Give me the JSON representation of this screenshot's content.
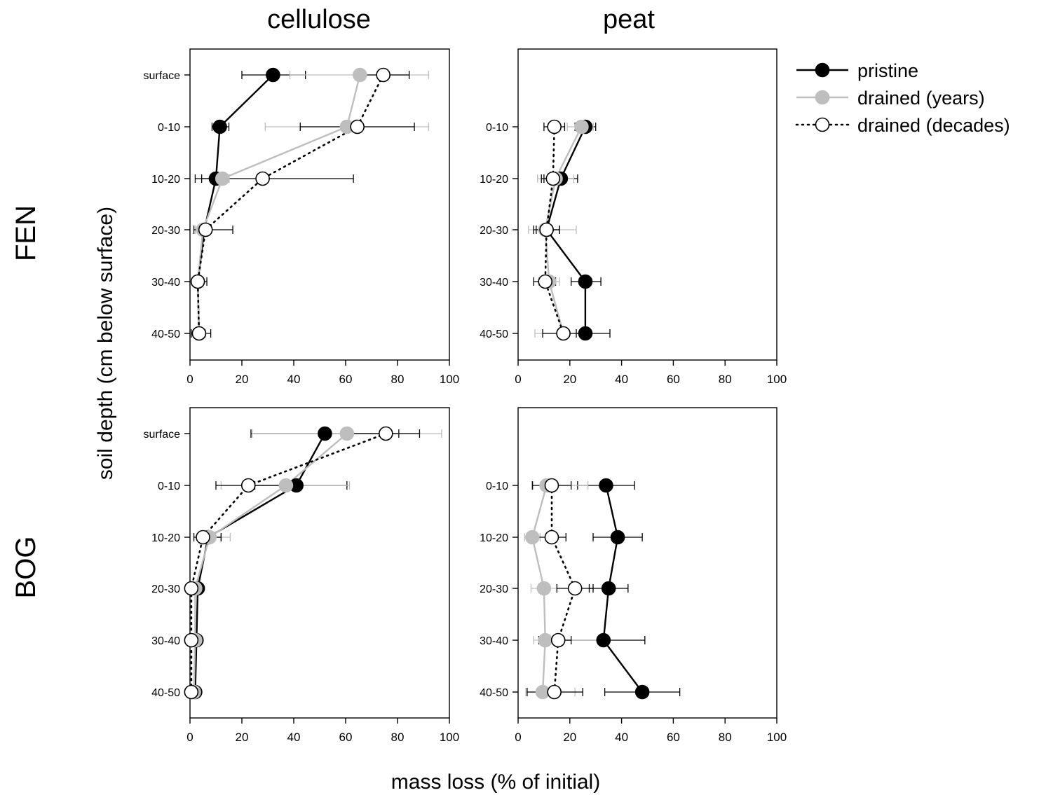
{
  "chart_data": {
    "type": "line",
    "ylabel": "soil depth (cm below surface)",
    "xlabel": "mass loss (% of initial)",
    "xlim": [
      0,
      100
    ],
    "xticks": [
      "0",
      "20",
      "40",
      "60",
      "80",
      "100"
    ],
    "categories": [
      "surface",
      "0-10",
      "10-20",
      "20-30",
      "30-40",
      "40-50"
    ],
    "column_titles": [
      "cellulose",
      "peat"
    ],
    "row_titles": [
      "FEN",
      "BOG"
    ],
    "legend": {
      "placement": "top-right",
      "entries": [
        {
          "key": "pristine",
          "label": "pristine",
          "color": "#000000",
          "marker": "filled-black",
          "line": "solid"
        },
        {
          "key": "years",
          "label": "drained (years)",
          "color": "#bebebe",
          "marker": "filled-grey",
          "line": "solid"
        },
        {
          "key": "decades",
          "label": "drained (decades)",
          "color": "#000000",
          "marker": "open-white",
          "line": "dotted"
        }
      ]
    },
    "panels": [
      {
        "row": "FEN",
        "column": "cellulose",
        "categories": [
          "surface",
          "0-10",
          "10-20",
          "20-30",
          "30-40",
          "40-50"
        ],
        "series": [
          {
            "name": "pristine",
            "values": [
              32,
              11.5,
              10,
              5.5,
              3,
              3.5
            ],
            "err_low": [
              20,
              8.5,
              4.5,
              5,
              2,
              2
            ],
            "err_high": [
              44.5,
              15,
              15,
              7,
              5,
              5
            ]
          },
          {
            "name": "drained (years)",
            "values": [
              65.5,
              60.5,
              12.5,
              5,
              3,
              3.5
            ],
            "err_low": [
              38.5,
              29,
              9,
              2,
              1.5,
              1.5
            ],
            "err_high": [
              92,
              92,
              15,
              8,
              5,
              6
            ]
          },
          {
            "name": "drained (decades)",
            "values": [
              74.5,
              64.5,
              28,
              6,
              3,
              3.5
            ],
            "err_low": [
              64.5,
              42.5,
              2,
              1.5,
              1,
              0.5
            ],
            "err_high": [
              84.5,
              86.5,
              63,
              16.5,
              6.5,
              8
            ]
          }
        ]
      },
      {
        "row": "FEN",
        "column": "peat",
        "categories": [
          "0-10",
          "10-20",
          "20-30",
          "30-40",
          "40-50"
        ],
        "series": [
          {
            "name": "pristine",
            "values": [
              26,
              16.5,
              11,
              26,
              26
            ],
            "err_low": [
              22,
              10,
              7,
              20.5,
              22.5
            ],
            "err_high": [
              30,
              23,
              16,
              32,
              35.5
            ]
          },
          {
            "name": "drained (years)",
            "values": [
              24.5,
              14.5,
              10.5,
              12,
              17.5
            ],
            "err_low": [
              19,
              7.5,
              4,
              8,
              6.5
            ],
            "err_high": [
              29,
              21.5,
              22.5,
              16,
              28
            ]
          },
          {
            "name": "drained (decades)",
            "values": [
              14,
              13.5,
              11,
              10.5,
              17.5
            ],
            "err_low": [
              10,
              9,
              6,
              6,
              9.5
            ],
            "err_high": [
              18,
              18,
              16,
              14.5,
              25.5
            ]
          }
        ]
      },
      {
        "row": "BOG",
        "column": "cellulose",
        "categories": [
          "surface",
          "0-10",
          "10-20",
          "20-30",
          "30-40",
          "40-50"
        ],
        "series": [
          {
            "name": "pristine",
            "values": [
              52,
              41,
              7,
              3,
              2.5,
              2
            ],
            "err_low": [
              23.5,
              25,
              4,
              1,
              1,
              1
            ],
            "err_high": [
              80.5,
              60.5,
              12,
              5,
              4,
              3.5
            ]
          },
          {
            "name": "drained (years)",
            "values": [
              60.5,
              37,
              7.5,
              2,
              2,
              1.5
            ],
            "err_low": [
              24,
              12,
              3,
              0.5,
              0.5,
              0.5
            ],
            "err_high": [
              97,
              61.5,
              15.5,
              4,
              3.5,
              3
            ]
          },
          {
            "name": "drained (decades)",
            "values": [
              75.5,
              22.5,
              5,
              0.5,
              0.5,
              0.5
            ],
            "err_low": [
              62,
              10,
              1.5,
              0,
              0,
              0
            ],
            "err_high": [
              88.5,
              35,
              12,
              1,
              1,
              1
            ]
          }
        ]
      },
      {
        "row": "BOG",
        "column": "peat",
        "categories": [
          "0-10",
          "10-20",
          "20-30",
          "30-40",
          "40-50"
        ],
        "series": [
          {
            "name": "pristine",
            "values": [
              34,
              38.5,
              35,
              33,
              48
            ],
            "err_low": [
              23,
              29,
              27.5,
              17,
              33.5
            ],
            "err_high": [
              45,
              48,
              42.5,
              49,
              62.5
            ]
          },
          {
            "name": "drained (years)",
            "values": [
              11,
              5.5,
              10,
              10.5,
              9.5
            ],
            "err_low": [
              6,
              2.5,
              5,
              6,
              3
            ],
            "err_high": [
              27,
              8.5,
              15,
              31,
              22
            ]
          },
          {
            "name": "drained (decades)",
            "values": [
              13,
              13,
              22,
              15.5,
              14
            ],
            "err_low": [
              5.5,
              7,
              15,
              8,
              3.5
            ],
            "err_high": [
              20.5,
              18.5,
              29,
              20.5,
              25
            ]
          }
        ]
      }
    ]
  }
}
